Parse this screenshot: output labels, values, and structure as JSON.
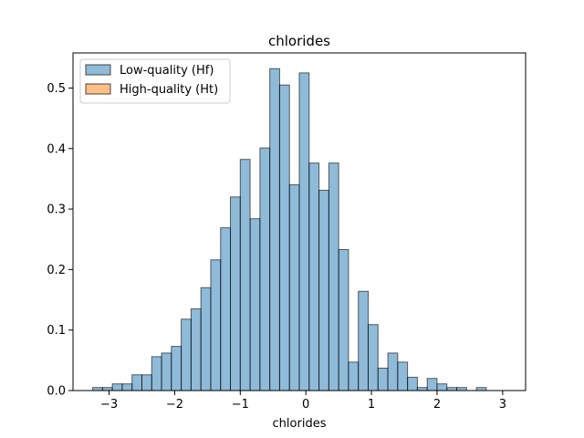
{
  "chart_data": {
    "type": "bar",
    "title": "chlorides",
    "xlabel": "chlorides",
    "ylabel": "",
    "xlim": [
      -3.55,
      3.35
    ],
    "ylim": [
      0,
      0.558
    ],
    "xticks": [
      -3,
      -2,
      -1,
      0,
      1,
      2,
      3
    ],
    "xtick_labels": [
      "−3",
      "−2",
      "−1",
      "0",
      "1",
      "2",
      "3"
    ],
    "yticks": [
      0.0,
      0.1,
      0.2,
      0.3,
      0.4,
      0.5
    ],
    "ytick_labels": [
      "0.0",
      "0.1",
      "0.2",
      "0.3",
      "0.4",
      "0.5"
    ],
    "grid": false,
    "legend_position": "top-left",
    "bin_edges": [
      -3.25,
      -3.1,
      -2.95,
      -2.8,
      -2.65,
      -2.5,
      -2.35,
      -2.2,
      -2.05,
      -1.9,
      -1.75,
      -1.6,
      -1.45,
      -1.3,
      -1.15,
      -1.0,
      -0.85,
      -0.7,
      -0.55,
      -0.4,
      -0.25,
      -0.1,
      0.05,
      0.2,
      0.35,
      0.5,
      0.65,
      0.8,
      0.95,
      1.1,
      1.25,
      1.4,
      1.55,
      1.7,
      1.85,
      2.0,
      2.15,
      2.3,
      2.45,
      2.6,
      2.75,
      2.9,
      3.05,
      3.2
    ],
    "series": [
      {
        "name": "Low-quality (Hf)",
        "color": "#1f77b4",
        "values": [
          0.005,
          0.005,
          0.011,
          0.011,
          0.026,
          0.026,
          0.056,
          0.062,
          0.073,
          0.118,
          0.135,
          0.17,
          0.216,
          0.269,
          0.32,
          0.382,
          0.284,
          0.401,
          0.532,
          0.505,
          0.34,
          0.525,
          0.376,
          0.331,
          0.376,
          0.233,
          0.047,
          0.164,
          0.109,
          0.037,
          0.062,
          0.047,
          0.022,
          0.005,
          0.02,
          0.011,
          0.005,
          0.005,
          0.0,
          0.005,
          0.0,
          0.0,
          0.0
        ]
      },
      {
        "name": "High-quality (Ht)",
        "color": "#ff7f0e",
        "values": []
      }
    ]
  }
}
